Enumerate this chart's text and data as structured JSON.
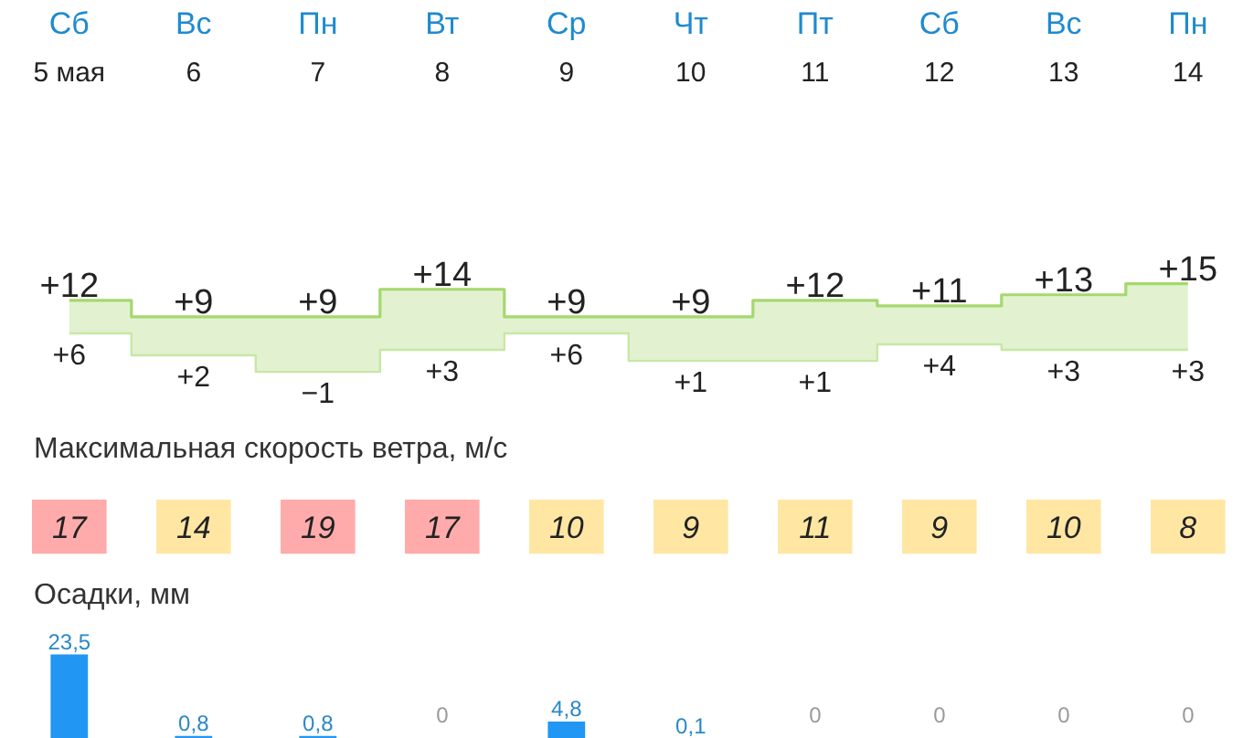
{
  "chart_data": [
    {
      "type": "step",
      "categories": [
        "Сб\n5 мая",
        "Вс\n6",
        "Пн\n7",
        "Вт\n8",
        "Ср\n9",
        "Чт\n10",
        "Пт\n11",
        "Сб\n12",
        "Вс\n13",
        "Пн\n14"
      ],
      "series": [
        {
          "color": "#a5d86e",
          "values": [
            12,
            9,
            9,
            14,
            9,
            9,
            12,
            11,
            13,
            15
          ],
          "lower": [
            6,
            2,
            -1,
            3,
            6,
            1,
            1,
            4,
            3,
            3
          ],
          "upper": [
            12,
            9,
            9,
            14,
            9,
            9,
            12,
            11,
            13,
            15
          ],
          "value_labels": [
            "+12",
            "+9",
            "+9",
            "+14",
            "+9",
            "+9",
            "+12",
            "+11",
            "+13",
            "+15"
          ]
        },
        {
          "color": "#c6e8a4",
          "values": [
            6,
            2,
            -1,
            3,
            6,
            1,
            1,
            4,
            3,
            3
          ],
          "value_labels": [
            "+6",
            "+2",
            "−1",
            "+3",
            "+6",
            "+1",
            "+1",
            "+4",
            "+3",
            "+3"
          ]
        }
      ]
    },
    {
      "type": "heatmap",
      "title": "Максимальная скорость ветра, м/с",
      "categories": [
        null,
        null,
        null,
        null,
        null,
        null,
        null,
        null,
        null,
        null
      ],
      "y_categories": [
        null
      ],
      "cells": [
        [
          17,
          14,
          19,
          17,
          10,
          9,
          11,
          9,
          10,
          8
        ]
      ],
      "colors": [
        "#ffabab",
        "#ffe7a3",
        "#ffabab",
        "#ffabab",
        "#ffe7a3",
        "#ffe7a3",
        "#ffe7a3",
        "#ffe7a3",
        "#ffe7a3",
        "#ffe7a3"
      ],
      "data_labels": true
    },
    {
      "type": "bar",
      "title": "Осадки, мм",
      "categories": [
        null,
        null,
        null,
        null,
        null,
        null,
        null,
        null,
        null,
        null
      ],
      "values": [
        23.5,
        0.8,
        0.8,
        0,
        4.8,
        0.1,
        0,
        0,
        0,
        0
      ],
      "value_labels": [
        "23,5",
        "0,8",
        "0,8",
        "0",
        "4,8",
        "0,1",
        "0",
        "0",
        "0",
        "0"
      ],
      "color": "#2196f3"
    }
  ]
}
